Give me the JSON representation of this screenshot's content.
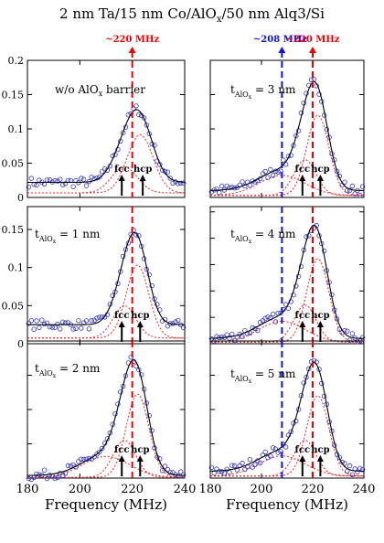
{
  "figure": {
    "title_parts": [
      "2 nm Ta/15 nm Co/AlO",
      "x",
      "/50 nm Alq3/Si"
    ],
    "freq_labels": {
      "f220": "~220 MHz",
      "f208": "~208 MHz"
    },
    "peak_labels": {
      "fcc": "fcc",
      "hcp": "hcp"
    },
    "colors": {
      "data": "#3333cc",
      "fit": "#000000",
      "component": "#ee2222",
      "line_220": "#ee0000",
      "line_208": "#1111dd",
      "arrow": "#000000"
    }
  },
  "chart_data": [
    {
      "type": "scatter",
      "panel": "left-top",
      "label_parts": [
        "w/o AlO",
        "x",
        " barrier"
      ],
      "xlabel": "",
      "xlim": [
        180,
        240
      ],
      "ylim": [
        0,
        0.2
      ],
      "y_ticks": [
        0,
        0.05,
        0.1,
        0.15,
        0.2
      ],
      "y_tick_labels": [
        "0",
        "0.05",
        "0.1",
        "0.15",
        "0.2"
      ],
      "x_ticks": [
        180,
        200,
        220,
        240
      ],
      "x_tick_labels": [],
      "baseline": 0.022,
      "peak_center": 220,
      "peak_height": 0.118,
      "peak_width": 5.5,
      "fcc_center": 217,
      "hcp_center": 223,
      "broad_center": null,
      "marker_lines": [
        220
      ],
      "annotations": [
        "fcc",
        "hcp"
      ]
    },
    {
      "type": "scatter",
      "panel": "right-top",
      "label_parts": [
        "t",
        "AlO",
        "x",
        " = 3 nm"
      ],
      "xlabel": "",
      "xlim": [
        180,
        240
      ],
      "ylim": [
        0,
        1.6
      ],
      "y_ticks": [
        0,
        0.4,
        0.8,
        1.2,
        1.6
      ],
      "y_tick_labels": [],
      "x_ticks": [
        180,
        200,
        220,
        240
      ],
      "x_tick_labels": [],
      "baseline": 0.08,
      "peak_center": 220,
      "peak_height": 1.3,
      "peak_width": 4.8,
      "fcc_center": 217,
      "hcp_center": 222,
      "broad_center": 208,
      "marker_lines": [
        208,
        220
      ],
      "annotations": [
        "fcc",
        "hcp"
      ]
    },
    {
      "type": "scatter",
      "panel": "left-middle",
      "label_parts": [
        "t",
        "AlO",
        "x",
        " = 1 nm"
      ],
      "xlabel": "",
      "xlim": [
        180,
        240
      ],
      "ylim": [
        0,
        0.18
      ],
      "y_ticks": [
        0,
        0.05,
        0.1,
        0.15
      ],
      "y_tick_labels": [
        "0",
        "0.05",
        "0.1",
        "0.15"
      ],
      "x_ticks": [
        180,
        200,
        220,
        240
      ],
      "x_tick_labels": [],
      "baseline": 0.025,
      "peak_center": 220.5,
      "peak_height": 0.133,
      "peak_width": 4.8,
      "fcc_center": 217,
      "hcp_center": 222,
      "broad_center": null,
      "marker_lines": [
        220
      ],
      "annotations": [
        "fcc",
        "hcp"
      ]
    },
    {
      "type": "scatter",
      "panel": "right-middle",
      "label_parts": [
        "t",
        "AlO",
        "x",
        " = 4 nm"
      ],
      "xlabel": "",
      "xlim": [
        180,
        240
      ],
      "ylim": [
        0,
        2.6
      ],
      "y_ticks": [
        0,
        0.5,
        1,
        1.5,
        2,
        2.5
      ],
      "y_tick_labels": [],
      "x_ticks": [
        180,
        200,
        220,
        240
      ],
      "x_tick_labels": [],
      "baseline": 0.1,
      "peak_center": 220,
      "peak_height": 2.2,
      "peak_width": 4.8,
      "fcc_center": 217,
      "hcp_center": 222,
      "broad_center": 208,
      "marker_lines": [
        208,
        220
      ],
      "annotations": [
        "fcc",
        "hcp"
      ]
    },
    {
      "type": "scatter",
      "panel": "left-bottom",
      "label_parts": [
        "t",
        "AlO",
        "x",
        " = 2 nm"
      ],
      "xlabel": "Frequency (MHz)",
      "xlim": [
        180,
        240
      ],
      "ylim": [
        0,
        1.6
      ],
      "y_ticks": [
        0,
        0.4,
        0.8,
        1.2,
        1.6
      ],
      "y_tick_labels": [],
      "x_ticks": [
        180,
        200,
        220,
        240
      ],
      "x_tick_labels": [
        "180",
        "200",
        "220",
        "240"
      ],
      "baseline": 0.03,
      "peak_center": 220.5,
      "peak_height": 1.35,
      "peak_width": 4.8,
      "fcc_center": 217,
      "hcp_center": 222,
      "broad_center": 210,
      "marker_lines": [
        220
      ],
      "annotations": [
        "fcc",
        "hcp"
      ]
    },
    {
      "type": "scatter",
      "panel": "right-bottom",
      "label_parts": [
        "t",
        "AlO",
        "x",
        " = 5 nm"
      ],
      "xlabel": "Frequency (MHz)",
      "xlim": [
        180,
        240
      ],
      "ylim": [
        0,
        1.6
      ],
      "y_ticks": [
        0,
        0.4,
        0.8,
        1.2,
        1.6
      ],
      "y_tick_labels": [],
      "x_ticks": [
        180,
        200,
        220,
        240
      ],
      "x_tick_labels": [
        "180",
        "200",
        "220",
        "240"
      ],
      "baseline": 0.08,
      "peak_center": 220.5,
      "peak_height": 1.3,
      "peak_width": 4.8,
      "fcc_center": 217,
      "hcp_center": 222,
      "broad_center": 208,
      "marker_lines": [
        208,
        220
      ],
      "annotations": [
        "fcc",
        "hcp"
      ]
    }
  ]
}
